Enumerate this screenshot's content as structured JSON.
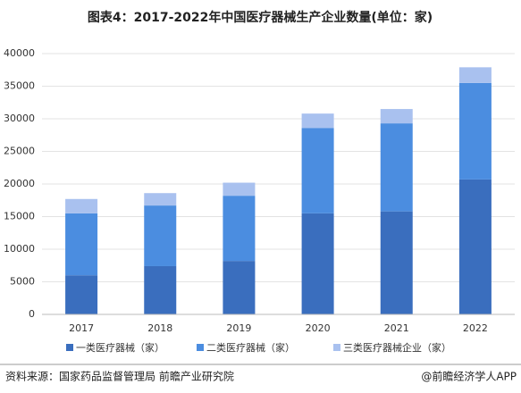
{
  "chart_data": {
    "type": "stacked_bar",
    "title": "图表4：2017-2022年中国医疗器械生产企业数量(单位：家)",
    "categories": [
      "2017",
      "2018",
      "2019",
      "2020",
      "2021",
      "2022"
    ],
    "series": [
      {
        "name": "一类医疗器械（家）",
        "color": "#3a6ebe",
        "values": [
          6000,
          7400,
          8200,
          15500,
          15800,
          20700
        ]
      },
      {
        "name": "二类医疗器械（家）",
        "color": "#4b8de0",
        "values": [
          9500,
          9300,
          10000,
          13100,
          13500,
          14800
        ]
      },
      {
        "name": "三类医疗器械企业（家）",
        "color": "#a9c1ef",
        "values": [
          2200,
          1900,
          2000,
          2200,
          2200,
          2400
        ]
      }
    ],
    "ylim": [
      0,
      40000
    ],
    "yticks": [
      0,
      5000,
      10000,
      15000,
      20000,
      25000,
      30000,
      35000,
      40000
    ],
    "grid": true,
    "source": "资料来源：国家药品监督管理局 前瞻产业研究院",
    "brand": "@前瞻经济学人APP"
  }
}
